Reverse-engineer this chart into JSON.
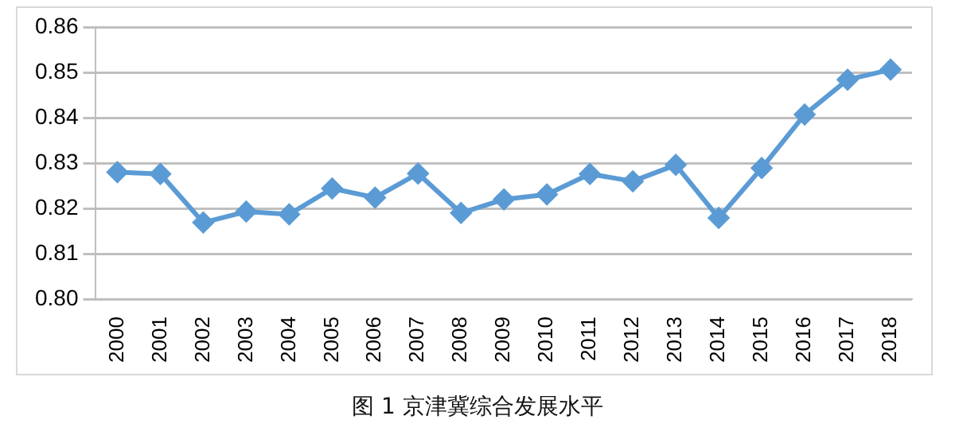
{
  "chart_data": {
    "type": "line",
    "title": "图 1 京津冀综合发展水平",
    "categories": [
      "2000",
      "2001",
      "2002",
      "2003",
      "2004",
      "2005",
      "2006",
      "2007",
      "2008",
      "2009",
      "2010",
      "2011",
      "2012",
      "2013",
      "2014",
      "2015",
      "2016",
      "2017",
      "2018"
    ],
    "series": [
      {
        "color": "#5b9bd5",
        "values": [
          0.828,
          0.8276,
          0.8169,
          0.8193,
          0.8187,
          0.8244,
          0.8224,
          0.8277,
          0.819,
          0.822,
          0.8231,
          0.8276,
          0.826,
          0.8296,
          0.8179,
          0.8289,
          0.8407,
          0.8484,
          0.8506
        ]
      }
    ],
    "ylim": [
      0.8,
      0.86
    ],
    "yticks": [
      {
        "value": 0.8,
        "label": "0.80"
      },
      0.81,
      0.82,
      0.83,
      0.84,
      0.85,
      0.86
    ],
    "grid": "y",
    "legend": false,
    "marker": "diamond",
    "line_style": "solid"
  }
}
